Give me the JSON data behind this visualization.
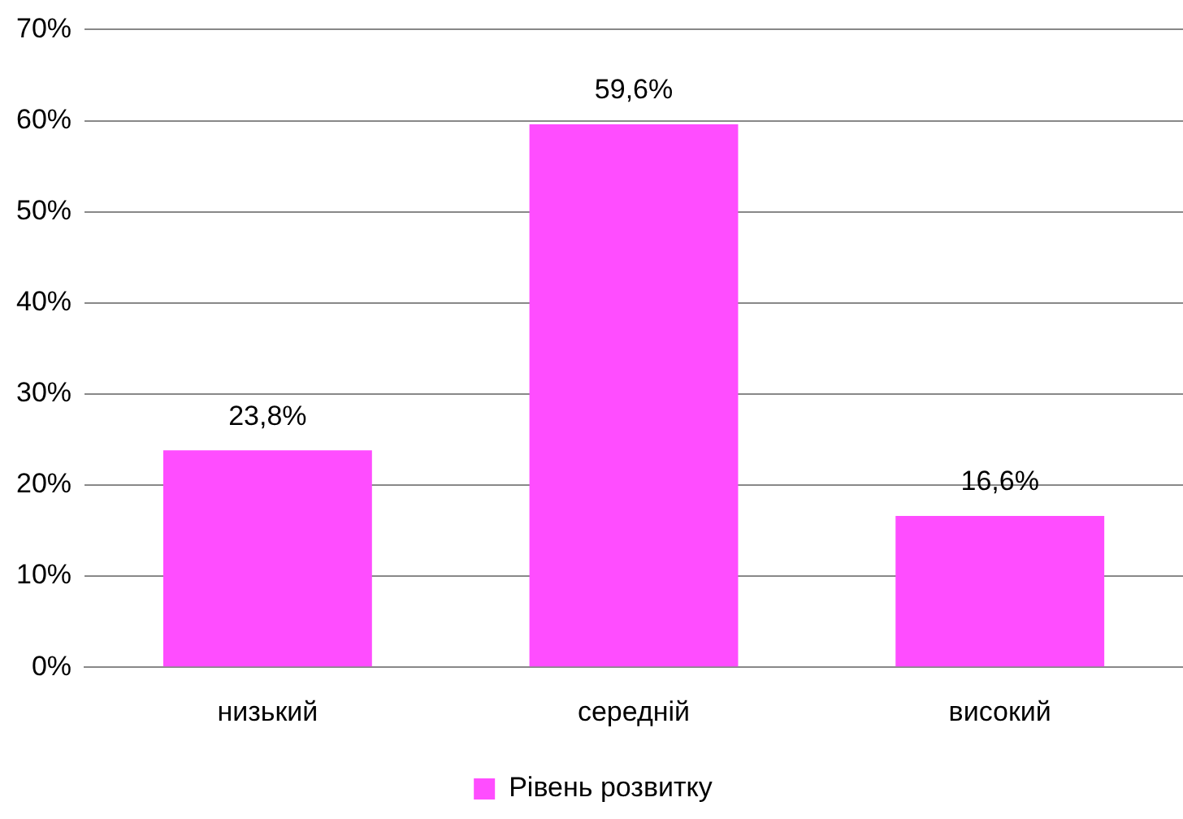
{
  "chart_data": {
    "type": "bar",
    "categories": [
      "низький",
      "середній",
      "високий"
    ],
    "series": [
      {
        "name": "Рівень розвитку",
        "color": "#ff4dff",
        "values": [
          23.8,
          59.6,
          16.6
        ],
        "value_labels": [
          "23,8%",
          "59,6%",
          "16,6%"
        ]
      }
    ],
    "ylim": [
      0,
      70
    ],
    "yticks": [
      {
        "value": 0,
        "label": "0%"
      },
      {
        "value": 10,
        "label": "10%"
      },
      {
        "value": 20,
        "label": "20%"
      },
      {
        "value": 30,
        "label": "30%"
      },
      {
        "value": 40,
        "label": "40%"
      },
      {
        "value": 50,
        "label": "50%"
      },
      {
        "value": 60,
        "label": "60%"
      },
      {
        "value": 70,
        "label": "70%"
      }
    ],
    "grid": "y",
    "legend": "bottom"
  }
}
